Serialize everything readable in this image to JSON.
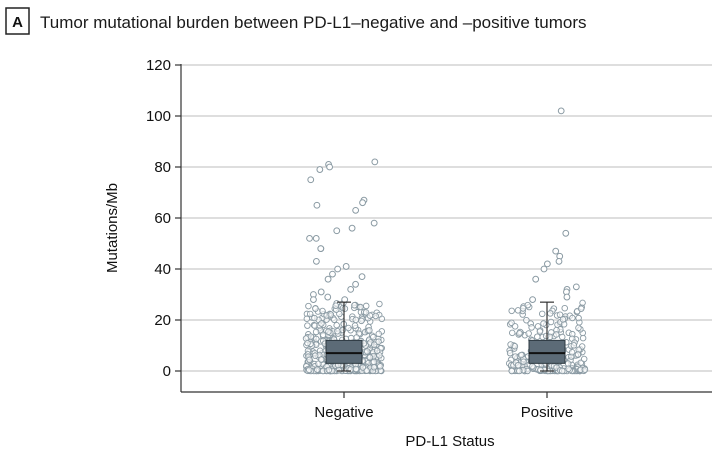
{
  "panel_label": "A",
  "chart_data": {
    "type": "scatter",
    "title": "Tumor mutational burden between PD-L1–negative and –positive tumors",
    "xlabel": "PD-L1 Status",
    "ylabel": "Mutations/Mb",
    "ylim": [
      -8,
      120
    ],
    "yticks": [
      0,
      20,
      40,
      60,
      80,
      100,
      120
    ],
    "categories": [
      "Negative",
      "Positive"
    ],
    "grid": "horizontal",
    "colors": {
      "box_fill": "#5c6b77",
      "point_stroke": "#8a9aa3",
      "gridline": "#c9c9c9",
      "axis": "#333333"
    },
    "boxplots": [
      {
        "category": "Negative",
        "whisker_low": 0,
        "q1": 3,
        "median": 7,
        "q3": 12,
        "whisker_high": 27
      },
      {
        "category": "Positive",
        "whisker_low": 0,
        "q1": 3,
        "median": 7,
        "q3": 12,
        "whisker_high": 27
      }
    ],
    "outliers": [
      {
        "category": "Negative",
        "values": [
          82,
          81,
          80,
          79,
          75,
          67,
          65,
          66,
          63,
          58,
          56,
          55,
          52,
          52,
          48,
          48,
          43,
          41,
          40,
          38,
          37,
          36,
          34,
          32,
          31,
          30,
          29,
          28,
          28
        ]
      },
      {
        "category": "Positive",
        "values": [
          102,
          54,
          47,
          45,
          43,
          42,
          40,
          36,
          33,
          32,
          31,
          29,
          28
        ]
      }
    ]
  }
}
